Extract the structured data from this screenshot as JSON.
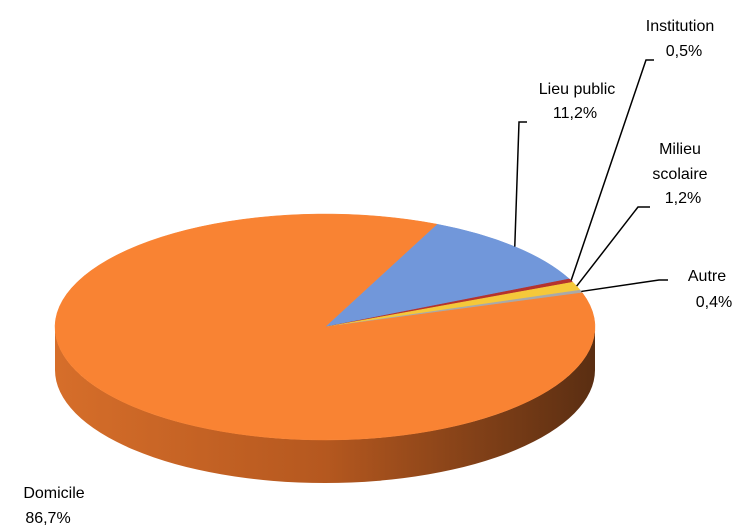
{
  "chart_data": {
    "type": "pie",
    "style": "3d",
    "title": "",
    "slices": [
      {
        "label": "Domicile",
        "value": 86.7,
        "display": "86,7%",
        "color": "#F98333"
      },
      {
        "label": "Lieu public",
        "value": 11.2,
        "display": "11,2%",
        "color": "#7197DA"
      },
      {
        "label": "Institution",
        "value": 0.5,
        "display": "0,5%",
        "color": "#B5322D"
      },
      {
        "label": "Milieu scolaire",
        "value": 1.2,
        "display": "1,2%",
        "color": "#F5C83A"
      },
      {
        "label": "Autre",
        "value": 0.4,
        "display": "0,4%",
        "color": "#A9A9A9"
      }
    ],
    "legend": "none",
    "data_labels": "outside-with-leader-lines"
  }
}
